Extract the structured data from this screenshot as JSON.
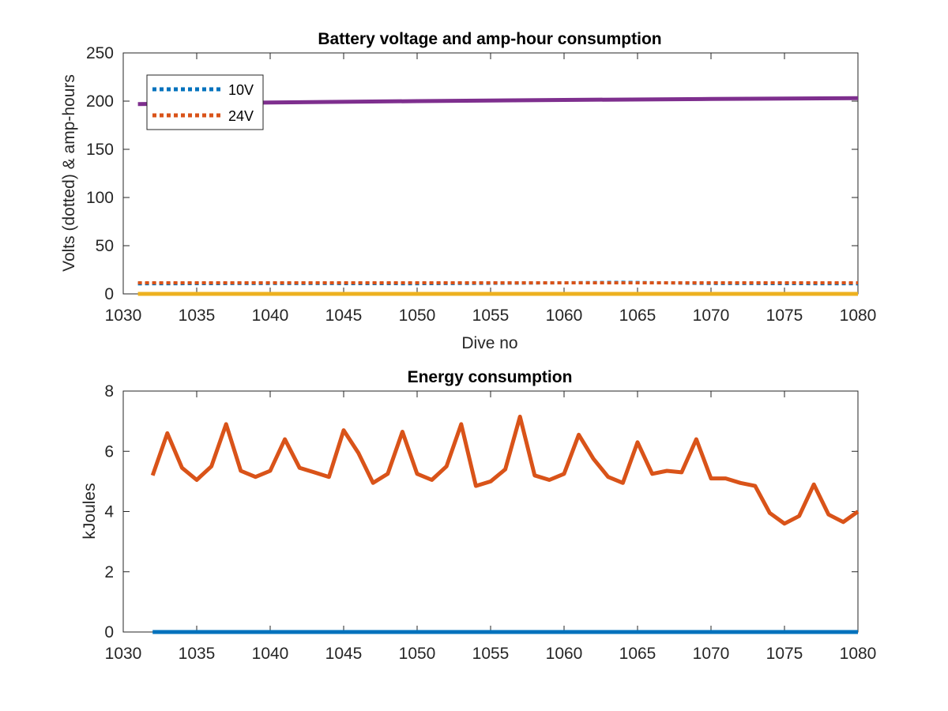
{
  "chart_data": [
    {
      "type": "line",
      "title": "Battery voltage and amp-hour consumption",
      "xlabel": "Dive no",
      "ylabel": "Volts (dotted) & amp-hours",
      "xlim": [
        1030,
        1080
      ],
      "ylim": [
        0,
        250
      ],
      "xticks": [
        1030,
        1035,
        1040,
        1045,
        1050,
        1055,
        1060,
        1065,
        1070,
        1075,
        1080
      ],
      "yticks": [
        0,
        50,
        100,
        150,
        200,
        250
      ],
      "grid": false,
      "legend_position": "top-left",
      "series": [
        {
          "name": "10V",
          "style": "dotted",
          "color": "#0072BD",
          "x": [
            1031,
            1040,
            1050,
            1060,
            1064,
            1070,
            1080
          ],
          "values": [
            10.5,
            10.8,
            10.6,
            11.5,
            12.0,
            10.8,
            10.5
          ]
        },
        {
          "name": "24V",
          "style": "dotted",
          "color": "#D95319",
          "x": [
            1031,
            1040,
            1050,
            1060,
            1070,
            1080
          ],
          "values": [
            11.5,
            11.5,
            11.5,
            11.5,
            11.5,
            11.5
          ]
        },
        {
          "style": "solid",
          "color": "#EDB120",
          "x": [
            1031,
            1080
          ],
          "values": [
            0,
            0
          ]
        },
        {
          "style": "solid",
          "color": "#7E2F8E",
          "x": [
            1031,
            1040,
            1050,
            1060,
            1070,
            1080
          ],
          "values": [
            197,
            198.5,
            200,
            201.2,
            202.2,
            203
          ]
        }
      ]
    },
    {
      "type": "line",
      "title": "Energy consumption",
      "xlabel": "",
      "ylabel": "kJoules",
      "xlim": [
        1030,
        1080
      ],
      "ylim": [
        0,
        8
      ],
      "xticks": [
        1030,
        1035,
        1040,
        1045,
        1050,
        1055,
        1060,
        1065,
        1070,
        1075,
        1080
      ],
      "yticks": [
        0,
        2,
        4,
        6,
        8
      ],
      "grid": false,
      "series": [
        {
          "style": "solid",
          "color": "#0072BD",
          "x": [
            1032,
            1080
          ],
          "values": [
            0,
            0
          ]
        },
        {
          "style": "solid",
          "color": "#D95319",
          "x": [
            1032,
            1033,
            1034,
            1035,
            1036,
            1037,
            1038,
            1039,
            1040,
            1041,
            1042,
            1043,
            1044,
            1045,
            1046,
            1047,
            1048,
            1049,
            1050,
            1051,
            1052,
            1053,
            1054,
            1055,
            1056,
            1057,
            1058,
            1059,
            1060,
            1061,
            1062,
            1063,
            1064,
            1065,
            1066,
            1067,
            1068,
            1069,
            1070,
            1071,
            1072,
            1073,
            1074,
            1075,
            1076,
            1077,
            1078,
            1079,
            1080
          ],
          "values": [
            5.2,
            6.6,
            5.45,
            5.05,
            5.5,
            6.9,
            5.35,
            5.15,
            5.35,
            6.4,
            5.45,
            5.3,
            5.15,
            6.7,
            5.95,
            4.95,
            5.25,
            6.65,
            5.25,
            5.05,
            5.5,
            6.9,
            4.85,
            5.0,
            5.4,
            7.15,
            5.2,
            5.05,
            5.25,
            6.55,
            5.75,
            5.15,
            4.95,
            6.3,
            5.25,
            5.35,
            5.3,
            6.4,
            5.1,
            5.1,
            4.95,
            4.85,
            3.95,
            3.6,
            3.85,
            4.9,
            3.9,
            3.65,
            4.0
          ]
        }
      ]
    }
  ]
}
